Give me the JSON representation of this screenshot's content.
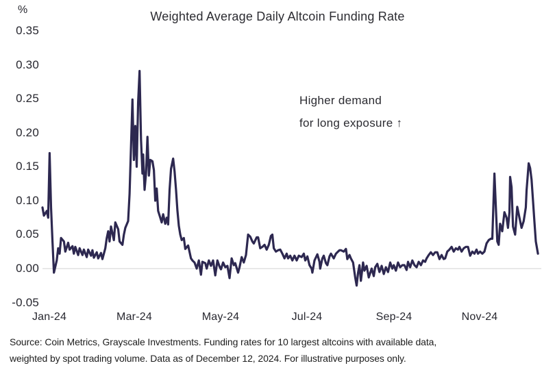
{
  "header": {
    "y_axis_unit": "%",
    "title": "Weighted Average Daily Altcoin Funding Rate"
  },
  "annotation": {
    "line1": "Higher demand",
    "line2": "for long exposure ↑"
  },
  "footnote": {
    "line1": "Source: Coin Metrics, Grayscale Investments. Funding rates for 10 largest altcoins with available data,",
    "line2": "weighted by spot trading volume. Data as of December 12, 2024. For illustrative purposes only."
  },
  "colors": {
    "line": "#2d2850",
    "grid": "#d9d9d9",
    "text": "#27272f"
  },
  "chart_data": {
    "type": "line",
    "title": "Weighted Average Daily Altcoin Funding Rate",
    "ylabel": "%",
    "ylim": [
      -0.05,
      0.35
    ],
    "grid": "horizontal zero line only",
    "legend": "none",
    "x_unit": "days since 2024-01-01 (data through 2024-12-12)",
    "x_tick_labels": [
      "Jan-24",
      "Mar-24",
      "May-24",
      "Jul-24",
      "Sep-24",
      "Nov-24"
    ],
    "y_tick_labels": [
      "0.35",
      "0.30",
      "0.25",
      "0.20",
      "0.15",
      "0.10",
      "0.05",
      "0.00",
      "-0.05"
    ],
    "series": [
      {
        "name": "Weighted average daily altcoin funding rate (%)",
        "points": [
          [
            0,
            0.09
          ],
          [
            1,
            0.078
          ],
          [
            3,
            0.085
          ],
          [
            4,
            0.075
          ],
          [
            5,
            0.17
          ],
          [
            6,
            0.09
          ],
          [
            7,
            0.04
          ],
          [
            8,
            -0.006
          ],
          [
            10,
            0.012
          ],
          [
            11,
            0.03
          ],
          [
            12,
            0.022
          ],
          [
            13,
            0.045
          ],
          [
            15,
            0.04
          ],
          [
            16,
            0.025
          ],
          [
            18,
            0.038
          ],
          [
            19,
            0.028
          ],
          [
            21,
            0.033
          ],
          [
            22,
            0.022
          ],
          [
            23,
            0.032
          ],
          [
            25,
            0.02
          ],
          [
            26,
            0.03
          ],
          [
            28,
            0.02
          ],
          [
            29,
            0.028
          ],
          [
            31,
            0.017
          ],
          [
            32,
            0.028
          ],
          [
            34,
            0.019
          ],
          [
            35,
            0.027
          ],
          [
            36,
            0.016
          ],
          [
            38,
            0.024
          ],
          [
            39,
            0.015
          ],
          [
            41,
            0.023
          ],
          [
            42,
            0.014
          ],
          [
            44,
            0.03
          ],
          [
            45,
            0.045
          ],
          [
            46,
            0.055
          ],
          [
            47,
            0.04
          ],
          [
            48,
            0.062
          ],
          [
            50,
            0.042
          ],
          [
            51,
            0.068
          ],
          [
            53,
            0.058
          ],
          [
            54,
            0.04
          ],
          [
            56,
            0.035
          ],
          [
            57,
            0.05
          ],
          [
            58,
            0.06
          ],
          [
            60,
            0.07
          ],
          [
            61,
            0.11
          ],
          [
            63,
            0.249
          ],
          [
            64,
            0.16
          ],
          [
            65,
            0.21
          ],
          [
            66,
            0.15
          ],
          [
            67,
            0.245
          ],
          [
            68,
            0.291
          ],
          [
            69,
            0.19
          ],
          [
            70,
            0.14
          ],
          [
            70.5,
            0.168
          ],
          [
            71.5,
            0.116
          ],
          [
            72.5,
            0.14
          ],
          [
            73.5,
            0.194
          ],
          [
            74.5,
            0.137
          ],
          [
            75.5,
            0.16
          ],
          [
            77,
            0.158
          ],
          [
            78,
            0.145
          ],
          [
            79,
            0.1
          ],
          [
            80,
            0.118
          ],
          [
            81,
            0.085
          ],
          [
            82.5,
            0.075
          ],
          [
            83.5,
            0.068
          ],
          [
            84.5,
            0.08
          ],
          [
            86,
            0.066
          ],
          [
            87,
            0.075
          ],
          [
            88,
            0.065
          ],
          [
            89,
            0.116
          ],
          [
            90,
            0.147
          ],
          [
            91.5,
            0.162
          ],
          [
            92.5,
            0.143
          ],
          [
            93.5,
            0.116
          ],
          [
            94.5,
            0.086
          ],
          [
            95.5,
            0.063
          ],
          [
            96.5,
            0.05
          ],
          [
            97.5,
            0.042
          ],
          [
            99,
            0.045
          ],
          [
            100,
            0.029
          ],
          [
            102,
            0.034
          ],
          [
            104,
            0.015
          ],
          [
            105,
            0.012
          ],
          [
            106.5,
            0.009
          ],
          [
            108,
            0.0
          ],
          [
            109.5,
            0.012
          ],
          [
            111,
            -0.009
          ],
          [
            112,
            0.01
          ],
          [
            114,
            0.008
          ],
          [
            115,
            0.0
          ],
          [
            116.5,
            0.012
          ],
          [
            118,
            0.004
          ],
          [
            119.5,
            0.012
          ],
          [
            121,
            -0.01
          ],
          [
            122.5,
            0.012
          ],
          [
            124,
            0.003
          ],
          [
            125,
            -0.001
          ],
          [
            126.5,
            0.009
          ],
          [
            128,
            0.002
          ],
          [
            129.5,
            0.004
          ],
          [
            131,
            -0.014
          ],
          [
            132.5,
            0.015
          ],
          [
            134,
            0.005
          ],
          [
            135,
            0.008
          ],
          [
            137,
            -0.006
          ],
          [
            138,
            0.002
          ],
          [
            139.5,
            0.017
          ],
          [
            141,
            0.009
          ],
          [
            142.5,
            0.02
          ],
          [
            144,
            0.05
          ],
          [
            145.5,
            0.047
          ],
          [
            147,
            0.04
          ],
          [
            148,
            0.037
          ],
          [
            150,
            0.046
          ],
          [
            151,
            0.046
          ],
          [
            152.5,
            0.03
          ],
          [
            154,
            0.032
          ],
          [
            155.5,
            0.035
          ],
          [
            157,
            0.028
          ],
          [
            158.5,
            0.035
          ],
          [
            160,
            0.048
          ],
          [
            161,
            0.05
          ],
          [
            162,
            0.03
          ],
          [
            163.5,
            0.025
          ],
          [
            165,
            0.027
          ],
          [
            166.5,
            0.028
          ],
          [
            168,
            0.022
          ],
          [
            169.5,
            0.015
          ],
          [
            171,
            0.022
          ],
          [
            172,
            0.015
          ],
          [
            173.5,
            0.019
          ],
          [
            175,
            0.012
          ],
          [
            176.5,
            0.019
          ],
          [
            178,
            0.012
          ],
          [
            179.5,
            0.019
          ],
          [
            181.5,
            0.017
          ],
          [
            183,
            0.022
          ],
          [
            184,
            0.012
          ],
          [
            185.5,
            0.018
          ],
          [
            187,
            0.005
          ],
          [
            188.5,
            0.0
          ],
          [
            189,
            -0.006
          ],
          [
            190.5,
            0.012
          ],
          [
            192.5,
            0.021
          ],
          [
            194,
            0.01
          ],
          [
            194.5,
            0.0
          ],
          [
            196,
            0.015
          ],
          [
            197,
            0.019
          ],
          [
            198.5,
            0.008
          ],
          [
            199.5,
            0.005
          ],
          [
            201,
            0.018
          ],
          [
            202,
            0.022
          ],
          [
            204,
            0.015
          ],
          [
            205.5,
            0.022
          ],
          [
            206.5,
            0.024
          ],
          [
            208,
            0.027
          ],
          [
            209,
            0.027
          ],
          [
            211,
            0.025
          ],
          [
            212.5,
            0.029
          ],
          [
            213.5,
            0.014
          ],
          [
            215,
            0.02
          ],
          [
            216,
            0.015
          ],
          [
            217.5,
            0.009
          ],
          [
            219,
            -0.013
          ],
          [
            220,
            -0.025
          ],
          [
            221,
            -0.006
          ],
          [
            222,
            0.005
          ],
          [
            223,
            -0.018
          ],
          [
            224.5,
            0.009
          ],
          [
            225.5,
            -0.003
          ],
          [
            227,
            0.004
          ],
          [
            228.5,
            -0.013
          ],
          [
            230.5,
            0.0
          ],
          [
            232,
            -0.011
          ],
          [
            233,
            0.002
          ],
          [
            234.5,
            0.007
          ],
          [
            236,
            -0.005
          ],
          [
            237.5,
            0.004
          ],
          [
            239,
            -0.008
          ],
          [
            240.5,
            0.002
          ],
          [
            242,
            -0.005
          ],
          [
            243.5,
            0.009
          ],
          [
            245,
            0.0
          ],
          [
            246,
            0.005
          ],
          [
            247.5,
            -0.003
          ],
          [
            249,
            0.009
          ],
          [
            250.5,
            0.002
          ],
          [
            252,
            0.005
          ],
          [
            253.5,
            0.005
          ],
          [
            255,
            -0.002
          ],
          [
            256,
            0.01
          ],
          [
            257.5,
            0.002
          ],
          [
            259,
            0.012
          ],
          [
            260.5,
            0.005
          ],
          [
            262,
            0.002
          ],
          [
            263.5,
            0.01
          ],
          [
            265,
            0.005
          ],
          [
            266.5,
            0.012
          ],
          [
            268,
            0.01
          ],
          [
            269,
            0.015
          ],
          [
            270.5,
            0.02
          ],
          [
            272,
            0.024
          ],
          [
            273.5,
            0.02
          ],
          [
            275,
            0.024
          ],
          [
            276.5,
            0.024
          ],
          [
            278,
            0.014
          ],
          [
            279.5,
            0.02
          ],
          [
            281,
            0.014
          ],
          [
            282,
            0.015
          ],
          [
            283.5,
            0.025
          ],
          [
            285,
            0.028
          ],
          [
            286.5,
            0.032
          ],
          [
            288,
            0.025
          ],
          [
            289.5,
            0.03
          ],
          [
            291,
            0.028
          ],
          [
            292,
            0.032
          ],
          [
            293.5,
            0.025
          ],
          [
            295,
            0.03
          ],
          [
            296.5,
            0.032
          ],
          [
            298,
            0.032
          ],
          [
            299.5,
            0.019
          ],
          [
            301,
            0.025
          ],
          [
            302.5,
            0.022
          ],
          [
            304,
            0.028
          ],
          [
            305,
            0.022
          ],
          [
            306.5,
            0.025
          ],
          [
            308,
            0.022
          ],
          [
            309.5,
            0.025
          ],
          [
            311,
            0.037
          ],
          [
            312.5,
            0.042
          ],
          [
            314,
            0.044
          ],
          [
            315,
            0.044
          ],
          [
            316.5,
            0.14
          ],
          [
            317.5,
            0.09
          ],
          [
            318.5,
            0.04
          ],
          [
            319.5,
            0.035
          ],
          [
            320.5,
            0.066
          ],
          [
            322,
            0.055
          ],
          [
            323.5,
            0.083
          ],
          [
            325,
            0.075
          ],
          [
            326,
            0.06
          ],
          [
            327,
            0.083
          ],
          [
            327.5,
            0.135
          ],
          [
            328.5,
            0.12
          ],
          [
            329.5,
            0.062
          ],
          [
            331,
            0.05
          ],
          [
            332.5,
            0.091
          ],
          [
            334,
            0.075
          ],
          [
            335.5,
            0.06
          ],
          [
            337,
            0.07
          ],
          [
            338.5,
            0.09
          ],
          [
            339,
            0.115
          ],
          [
            340.5,
            0.155
          ],
          [
            341.5,
            0.148
          ],
          [
            342.5,
            0.131
          ],
          [
            343.5,
            0.1
          ],
          [
            344.5,
            0.07
          ],
          [
            345.5,
            0.04
          ],
          [
            347,
            0.022
          ]
        ]
      }
    ]
  }
}
